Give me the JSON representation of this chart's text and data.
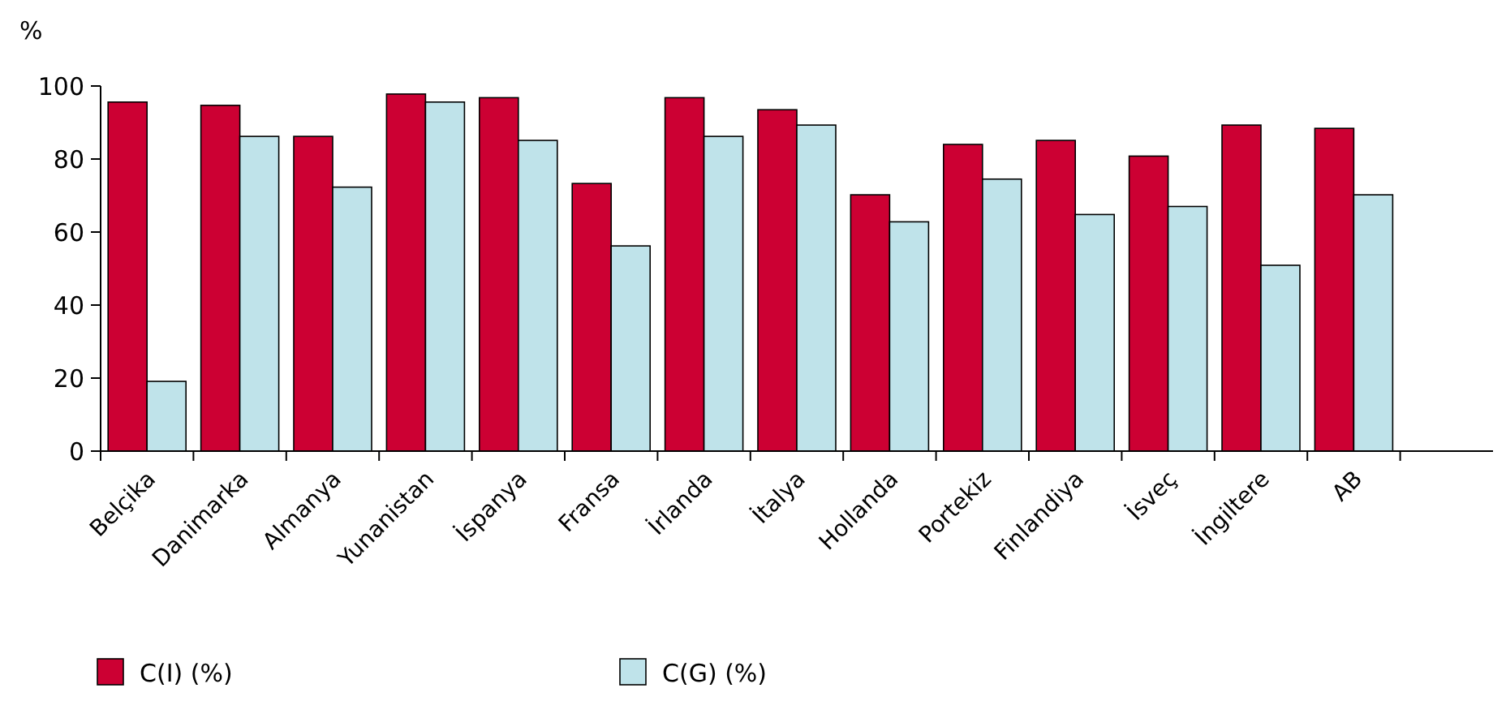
{
  "chart_data": {
    "type": "bar",
    "ylabel": "%",
    "categories": [
      "Belçika",
      "Danimarka",
      "Almanya",
      "Yunanistan",
      "İspanya",
      "Fransa",
      "İrlanda",
      "İtalya",
      "Hollanda",
      "Portekiz",
      "Finlandiya",
      "İsveç",
      "İngiltere",
      "AB",
      null
    ],
    "series": [
      {
        "name": "C(I) (%)",
        "color": "#cc0033",
        "values": [
          95.6,
          94.7,
          86.2,
          97.8,
          96.8,
          73.3,
          96.8,
          93.5,
          70.2,
          84,
          85.1,
          80.8,
          89.3,
          88.4,
          null
        ]
      },
      {
        "name": "C(G) (%)",
        "color": "#bfe3ea",
        "values": [
          19.1,
          86.2,
          72.3,
          95.6,
          85.1,
          56.2,
          86.2,
          89.3,
          62.8,
          74.5,
          64.8,
          67,
          50.9,
          70.2,
          null
        ]
      }
    ],
    "ylim": [
      0,
      100
    ],
    "yticks": [
      0,
      20,
      40,
      60,
      80,
      100
    ],
    "grid": false,
    "legend": "bottom left"
  }
}
